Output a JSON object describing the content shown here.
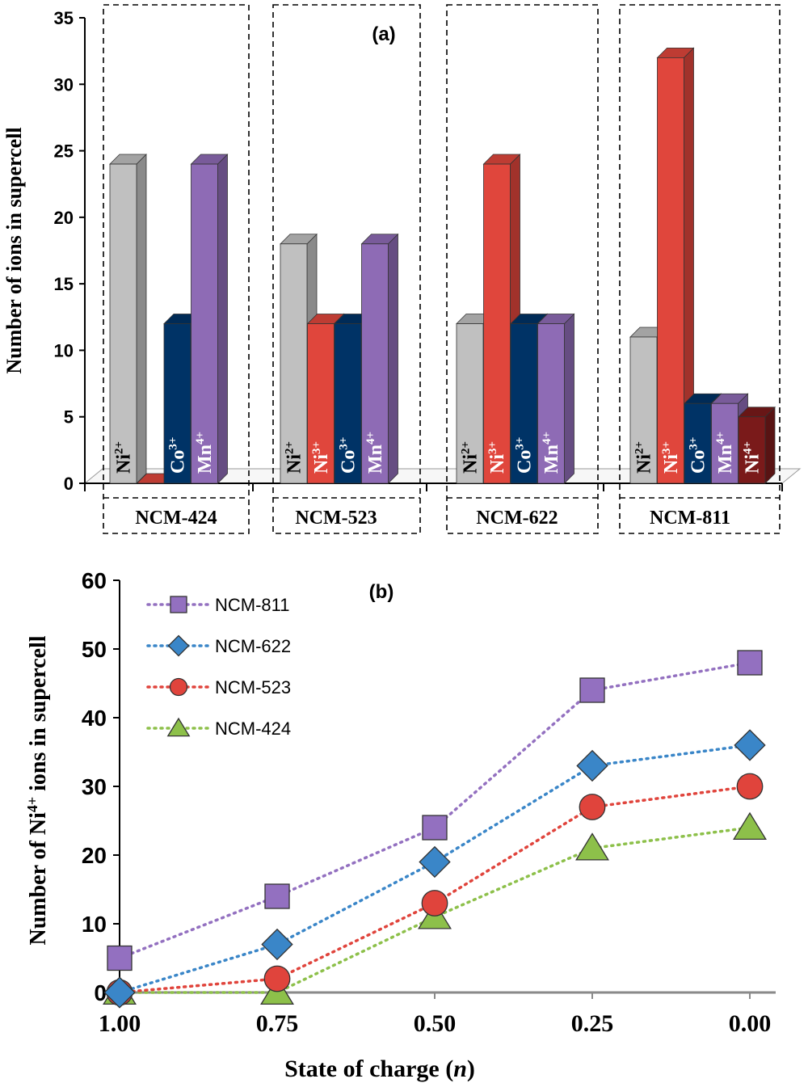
{
  "chart_data": [
    {
      "type": "bar",
      "panel_label": "(a)",
      "ylabel": "Number of ions in supercell",
      "ylim": [
        0,
        35
      ],
      "yticks": [
        0,
        5,
        10,
        15,
        20,
        25,
        30,
        35
      ],
      "groups": [
        {
          "name": "NCM-424",
          "bars": [
            {
              "ion": "Ni",
              "charge": "2+",
              "value": 24,
              "color": "#c0c0c0",
              "label_color": "#000000"
            },
            {
              "ion": "Ni",
              "charge": "3+",
              "value": 0,
              "color": "#e0463c",
              "label_color": "#ffffff"
            },
            {
              "ion": "Co",
              "charge": "3+",
              "value": 12,
              "color": "#003366",
              "label_color": "#ffffff"
            },
            {
              "ion": "Mn",
              "charge": "4+",
              "value": 24,
              "color": "#8e6bb5",
              "label_color": "#ffffff"
            }
          ]
        },
        {
          "name": "NCM-523",
          "bars": [
            {
              "ion": "Ni",
              "charge": "2+",
              "value": 18,
              "color": "#c0c0c0",
              "label_color": "#000000"
            },
            {
              "ion": "Ni",
              "charge": "3+",
              "value": 12,
              "color": "#e0463c",
              "label_color": "#ffffff"
            },
            {
              "ion": "Co",
              "charge": "3+",
              "value": 12,
              "color": "#003366",
              "label_color": "#ffffff"
            },
            {
              "ion": "Mn",
              "charge": "4+",
              "value": 18,
              "color": "#8e6bb5",
              "label_color": "#ffffff"
            }
          ]
        },
        {
          "name": "NCM-622",
          "bars": [
            {
              "ion": "Ni",
              "charge": "2+",
              "value": 12,
              "color": "#c0c0c0",
              "label_color": "#000000"
            },
            {
              "ion": "Ni",
              "charge": "3+",
              "value": 24,
              "color": "#e0463c",
              "label_color": "#ffffff"
            },
            {
              "ion": "Co",
              "charge": "3+",
              "value": 12,
              "color": "#003366",
              "label_color": "#ffffff"
            },
            {
              "ion": "Mn",
              "charge": "4+",
              "value": 12,
              "color": "#8e6bb5",
              "label_color": "#ffffff"
            }
          ]
        },
        {
          "name": "NCM-811",
          "bars": [
            {
              "ion": "Ni",
              "charge": "2+",
              "value": 11,
              "color": "#c0c0c0",
              "label_color": "#000000"
            },
            {
              "ion": "Ni",
              "charge": "3+",
              "value": 32,
              "color": "#e0463c",
              "label_color": "#ffffff"
            },
            {
              "ion": "Co",
              "charge": "3+",
              "value": 6,
              "color": "#003366",
              "label_color": "#ffffff"
            },
            {
              "ion": "Mn",
              "charge": "4+",
              "value": 6,
              "color": "#8e6bb5",
              "label_color": "#ffffff"
            },
            {
              "ion": "Ni",
              "charge": "4+",
              "value": 5,
              "color": "#7a1a1a",
              "label_color": "#ffffff"
            }
          ]
        }
      ]
    },
    {
      "type": "line",
      "panel_label": "(b)",
      "ylabel_parts": [
        "Number of Ni",
        "4+",
        " ions in supercell"
      ],
      "xlabel_parts": [
        "State of charge (",
        "n",
        ")"
      ],
      "x": [
        1.0,
        0.75,
        0.5,
        0.25,
        0.0
      ],
      "xtick_labels": [
        "1.00",
        "0.75",
        "0.50",
        "0.25",
        "0.00"
      ],
      "xlim": [
        1.0,
        0.0
      ],
      "ylim": [
        0,
        60
      ],
      "yticks": [
        0,
        10,
        20,
        30,
        40,
        50,
        60
      ],
      "legend_position": "top-left",
      "series": [
        {
          "name": "NCM-811",
          "marker": "square",
          "color": "#9370c0",
          "values": [
            5,
            14,
            24,
            44,
            48
          ]
        },
        {
          "name": "NCM-622",
          "marker": "diamond",
          "color": "#3a86c8",
          "values": [
            0,
            7,
            19,
            33,
            36
          ]
        },
        {
          "name": "NCM-523",
          "marker": "circle",
          "color": "#e0443c",
          "values": [
            0,
            2,
            13,
            27,
            30
          ]
        },
        {
          "name": "NCM-424",
          "marker": "triangle",
          "color": "#8dc04a",
          "values": [
            0,
            0,
            11,
            21,
            24
          ]
        }
      ]
    }
  ]
}
